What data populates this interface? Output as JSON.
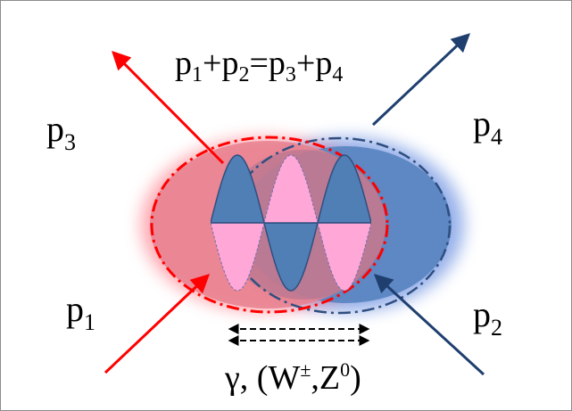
{
  "equation": {
    "parts": [
      {
        "base": "p",
        "sub": "1"
      },
      {
        "op": "+"
      },
      {
        "base": "p",
        "sub": "2"
      },
      {
        "op": "="
      },
      {
        "base": "p",
        "sub": "3"
      },
      {
        "op": "+"
      },
      {
        "base": "p",
        "sub": "4"
      }
    ]
  },
  "labels": {
    "p3": {
      "base": "p",
      "sub": "3"
    },
    "p4": {
      "base": "p",
      "sub": "4"
    },
    "p1": {
      "base": "p",
      "sub": "1"
    },
    "p2": {
      "base": "p",
      "sub": "2"
    }
  },
  "exchange": {
    "gamma": "γ",
    "sep": ", (",
    "w": "W",
    "w_sup": "±",
    "comma": ",",
    "z": "Z",
    "z_sup": "0",
    "close": ")"
  },
  "colors": {
    "red": "#ff0000",
    "blue": "#1f3f6f",
    "pink": "#ffa8d8",
    "steel": "#4f7fb5"
  }
}
